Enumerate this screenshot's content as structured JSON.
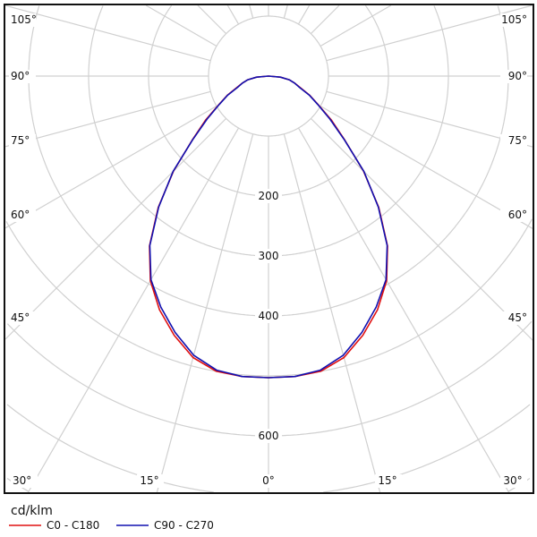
{
  "chart_data": {
    "type": "polar-line",
    "unit_label": "cd/klm",
    "radial_ticks": [
      {
        "value": 200,
        "label": "200"
      },
      {
        "value": 300,
        "label": "300"
      },
      {
        "value": 400,
        "label": "400"
      },
      {
        "value": 600,
        "label": "600"
      }
    ],
    "radial_rings": [
      100,
      200,
      300,
      400,
      500,
      600,
      700,
      800,
      900
    ],
    "angle_step": 15,
    "angle_labels_left": [
      "105°",
      "90°",
      "75°",
      "60°",
      "45°",
      "30°"
    ],
    "angle_labels_bottom": [
      "30°",
      "15°",
      "0°",
      "15°",
      "30°"
    ],
    "angle_labels_right": [
      "105°",
      "90°",
      "75°",
      "60°",
      "45°"
    ],
    "angles": [
      0,
      5,
      10,
      15,
      20,
      25,
      30,
      35,
      40,
      45,
      50,
      55,
      60,
      65,
      70,
      75,
      80,
      85,
      90
    ],
    "series": [
      {
        "name": "C0 - C180",
        "color": "#e01010",
        "values": [
          503,
          503,
          500,
          486,
          460,
          430,
          394,
          346,
          286,
          224,
          166,
          128,
          96,
          76,
          56,
          45,
          35,
          20,
          0
        ]
      },
      {
        "name": "C90 - C270",
        "color": "#1010b0",
        "values": [
          503,
          503,
          498,
          482,
          455,
          425,
          392,
          345,
          285,
          225,
          165,
          125,
          95,
          75,
          55,
          45,
          35,
          20,
          0
        ]
      }
    ],
    "grid": true,
    "legend": "bottom-left"
  }
}
